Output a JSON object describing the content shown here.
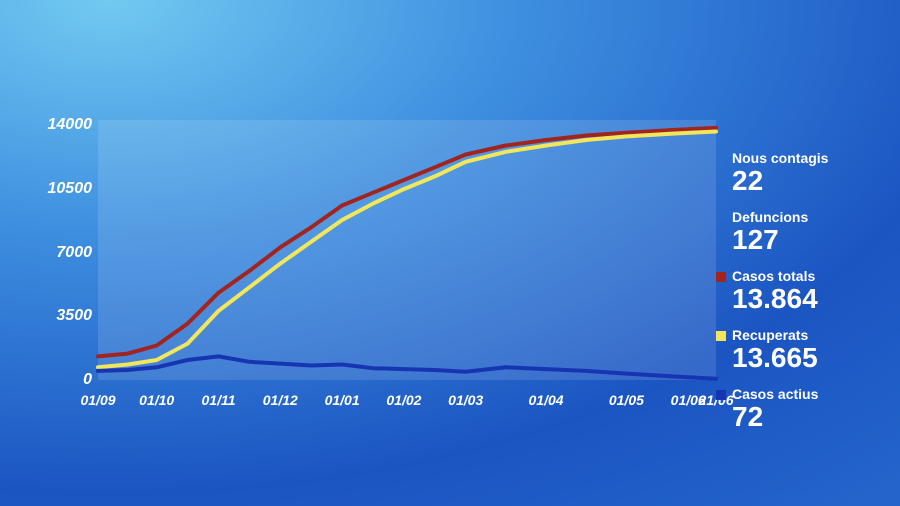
{
  "background": {
    "gradient_stops": [
      "#71caf1",
      "#3e8fe0",
      "#1b55c2",
      "#2464cb"
    ]
  },
  "chart": {
    "type": "line",
    "plot_background_color": "rgba(255,255,255,0.12)",
    "text_color": "#ffffff",
    "label_fontsize": 16,
    "label_fontstyle": "italic",
    "ylim": [
      0,
      14300
    ],
    "yticks": [
      0,
      3500,
      7000,
      10500,
      14000
    ],
    "ytick_labels": [
      "0",
      "3500",
      "7000",
      "10500",
      "14000"
    ],
    "xtick_positions": [
      0.0,
      0.095,
      0.195,
      0.295,
      0.395,
      0.495,
      0.595,
      0.725,
      0.855,
      0.955
    ],
    "xtick_labels": [
      "01/09",
      "01/10",
      "01/11",
      "01/12",
      "01/01",
      "01/02",
      "01/03",
      "01/04",
      "01/05",
      "01/06",
      "21/06"
    ],
    "xtick_last_position": 1.0,
    "series": [
      {
        "name": "casos-totals",
        "color": "#a2241f",
        "stroke_width": 4,
        "points": [
          [
            0.0,
            1300
          ],
          [
            0.048,
            1450
          ],
          [
            0.095,
            1900
          ],
          [
            0.145,
            3100
          ],
          [
            0.195,
            4800
          ],
          [
            0.245,
            6000
          ],
          [
            0.295,
            7300
          ],
          [
            0.345,
            8400
          ],
          [
            0.395,
            9600
          ],
          [
            0.445,
            10300
          ],
          [
            0.495,
            11000
          ],
          [
            0.545,
            11700
          ],
          [
            0.595,
            12400
          ],
          [
            0.66,
            12900
          ],
          [
            0.725,
            13200
          ],
          [
            0.79,
            13450
          ],
          [
            0.855,
            13600
          ],
          [
            0.93,
            13750
          ],
          [
            1.0,
            13864
          ]
        ]
      },
      {
        "name": "recuperats",
        "color": "#f2e65a",
        "stroke_width": 4,
        "points": [
          [
            0.0,
            700
          ],
          [
            0.048,
            850
          ],
          [
            0.095,
            1100
          ],
          [
            0.145,
            2000
          ],
          [
            0.195,
            3800
          ],
          [
            0.245,
            5100
          ],
          [
            0.295,
            6400
          ],
          [
            0.345,
            7600
          ],
          [
            0.395,
            8800
          ],
          [
            0.445,
            9700
          ],
          [
            0.495,
            10500
          ],
          [
            0.545,
            11200
          ],
          [
            0.595,
            12000
          ],
          [
            0.66,
            12550
          ],
          [
            0.725,
            12900
          ],
          [
            0.79,
            13200
          ],
          [
            0.855,
            13400
          ],
          [
            0.93,
            13550
          ],
          [
            1.0,
            13665
          ]
        ]
      },
      {
        "name": "casos-actius",
        "color": "#1735b2",
        "stroke_width": 4,
        "points": [
          [
            0.0,
            500
          ],
          [
            0.048,
            550
          ],
          [
            0.095,
            700
          ],
          [
            0.145,
            1100
          ],
          [
            0.195,
            1300
          ],
          [
            0.245,
            1000
          ],
          [
            0.295,
            900
          ],
          [
            0.345,
            800
          ],
          [
            0.395,
            850
          ],
          [
            0.445,
            650
          ],
          [
            0.495,
            600
          ],
          [
            0.545,
            550
          ],
          [
            0.595,
            450
          ],
          [
            0.66,
            700
          ],
          [
            0.725,
            600
          ],
          [
            0.79,
            500
          ],
          [
            0.855,
            350
          ],
          [
            0.93,
            200
          ],
          [
            1.0,
            72
          ]
        ]
      }
    ]
  },
  "sidebar": {
    "items": [
      {
        "label": "Nous contagis",
        "value": "22",
        "swatch": null
      },
      {
        "label": "Defuncions",
        "value": "127",
        "swatch": null
      },
      {
        "label": "Casos totals",
        "value": "13.864",
        "swatch": "#a2241f"
      },
      {
        "label": "Recuperats",
        "value": "13.665",
        "swatch": "#f2e65a"
      },
      {
        "label": "Casos actius",
        "value": "72",
        "swatch": "#1735b2"
      }
    ]
  }
}
